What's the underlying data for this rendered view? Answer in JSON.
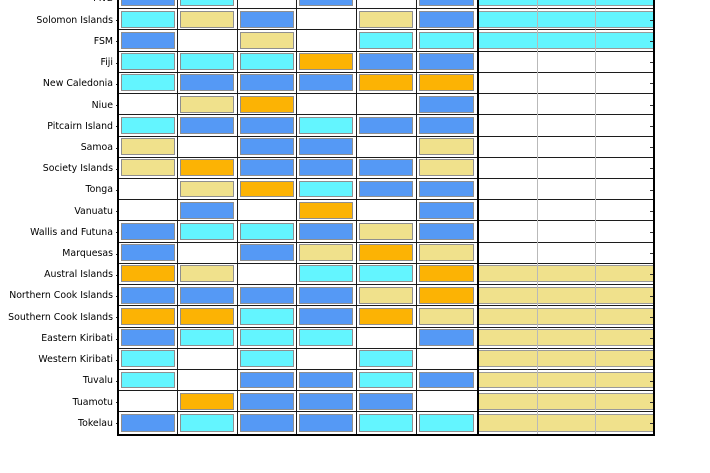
{
  "chart_data": {
    "type": "heatmap",
    "title": "",
    "xlabel": "",
    "ylabel": "",
    "legend_position": "none",
    "grid": true,
    "left_block_columns": 6,
    "right_block_columns": 3,
    "palette": {
      "white": "#ffffff",
      "cyan": "#63f5ff",
      "blue": "#5599f5",
      "khaki": "#f0e18c",
      "orange": "#fcb304"
    },
    "rows": [
      {
        "label": "PNG",
        "cells": [
          "blue",
          "cyan",
          "white",
          "blue",
          "white",
          "blue"
        ],
        "right": "cyan"
      },
      {
        "label": "Solomon Islands",
        "cells": [
          "cyan",
          "khaki",
          "blue",
          "white",
          "khaki",
          "blue"
        ],
        "right": "cyan"
      },
      {
        "label": "FSM",
        "cells": [
          "blue",
          "white",
          "khaki",
          "white",
          "cyan",
          "cyan"
        ],
        "right": "cyan"
      },
      {
        "label": "Fiji",
        "cells": [
          "cyan",
          "cyan",
          "cyan",
          "orange",
          "blue",
          "blue"
        ],
        "right": "white"
      },
      {
        "label": "New Caledonia",
        "cells": [
          "cyan",
          "blue",
          "blue",
          "blue",
          "orange",
          "orange"
        ],
        "right": "white"
      },
      {
        "label": "Niue",
        "cells": [
          "white",
          "khaki",
          "orange",
          "white",
          "white",
          "blue"
        ],
        "right": "white"
      },
      {
        "label": "Pitcairn Island",
        "cells": [
          "cyan",
          "blue",
          "blue",
          "cyan",
          "blue",
          "blue"
        ],
        "right": "white"
      },
      {
        "label": "Samoa",
        "cells": [
          "khaki",
          "white",
          "blue",
          "blue",
          "white",
          "khaki"
        ],
        "right": "white"
      },
      {
        "label": "Society Islands",
        "cells": [
          "khaki",
          "orange",
          "blue",
          "blue",
          "blue",
          "khaki"
        ],
        "right": "white"
      },
      {
        "label": "Tonga",
        "cells": [
          "white",
          "khaki",
          "orange",
          "cyan",
          "blue",
          "blue"
        ],
        "right": "white"
      },
      {
        "label": "Vanuatu",
        "cells": [
          "white",
          "blue",
          "white",
          "orange",
          "white",
          "blue"
        ],
        "right": "white"
      },
      {
        "label": "Wallis and Futuna",
        "cells": [
          "blue",
          "cyan",
          "cyan",
          "blue",
          "khaki",
          "blue"
        ],
        "right": "white"
      },
      {
        "label": "Marquesas",
        "cells": [
          "blue",
          "white",
          "blue",
          "khaki",
          "orange",
          "khaki"
        ],
        "right": "white"
      },
      {
        "label": "Austral Islands",
        "cells": [
          "orange",
          "khaki",
          "white",
          "cyan",
          "cyan",
          "orange"
        ],
        "right": "khaki"
      },
      {
        "label": "Northern Cook Islands",
        "cells": [
          "blue",
          "blue",
          "blue",
          "blue",
          "khaki",
          "orange"
        ],
        "right": "khaki"
      },
      {
        "label": "Southern Cook Islands",
        "cells": [
          "orange",
          "orange",
          "cyan",
          "blue",
          "orange",
          "khaki"
        ],
        "right": "khaki"
      },
      {
        "label": "Eastern Kiribati",
        "cells": [
          "blue",
          "cyan",
          "cyan",
          "cyan",
          "white",
          "blue"
        ],
        "right": "khaki"
      },
      {
        "label": "Western Kiribati",
        "cells": [
          "cyan",
          "white",
          "cyan",
          "white",
          "cyan",
          "white"
        ],
        "right": "khaki"
      },
      {
        "label": "Tuvalu",
        "cells": [
          "cyan",
          "white",
          "blue",
          "blue",
          "cyan",
          "blue"
        ],
        "right": "khaki"
      },
      {
        "label": "Tuamotu",
        "cells": [
          "white",
          "orange",
          "blue",
          "blue",
          "blue",
          "white"
        ],
        "right": "khaki"
      },
      {
        "label": "Tokelau",
        "cells": [
          "blue",
          "cyan",
          "blue",
          "blue",
          "cyan",
          "cyan"
        ],
        "right": "khaki"
      }
    ]
  }
}
